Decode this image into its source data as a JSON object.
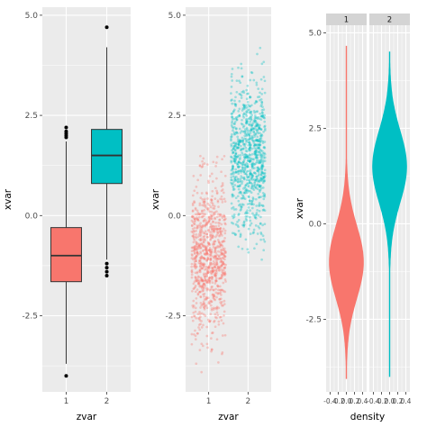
{
  "colors": {
    "panel_bg": "#ebebeb",
    "grid": "#ffffff",
    "strip_bg": "#d4d4d4",
    "group1": "#f8766d",
    "group2": "#00bfc4"
  },
  "chart_data": [
    {
      "type": "boxplot",
      "xlabel": "zvar",
      "ylabel": "xvar",
      "categories": [
        "1",
        "2"
      ],
      "ylim": [
        -4.4,
        5.2
      ],
      "yticks": [
        "5.0",
        "2.5",
        "0.0",
        "-2.5"
      ],
      "ytick_values": [
        5.0,
        2.5,
        0.0,
        -2.5
      ],
      "grid": true,
      "legend": "none",
      "boxes": [
        {
          "category": "1",
          "q1": -1.65,
          "median": -1.0,
          "q3": -0.3,
          "whisker_low": -3.7,
          "whisker_high": 1.85,
          "outliers": [
            2.0,
            2.1,
            2.2,
            1.95,
            2.05,
            -4.0
          ]
        },
        {
          "category": "2",
          "q1": 0.8,
          "median": 1.5,
          "q3": 2.15,
          "whisker_low": -1.1,
          "whisker_high": 4.2,
          "outliers": [
            -1.2,
            -1.3,
            -1.4,
            -1.5,
            4.7
          ]
        }
      ]
    },
    {
      "type": "scatter",
      "xlabel": "zvar",
      "ylabel": "xvar",
      "categories": [
        "1",
        "2"
      ],
      "ylim": [
        -4.4,
        5.2
      ],
      "yticks": [
        "5.0",
        "2.5",
        "0.0",
        "-2.5"
      ],
      "ytick_values": [
        5.0,
        2.5,
        0.0,
        -2.5
      ],
      "jitter": true,
      "alpha": 0.35,
      "grid": true,
      "legend": "none",
      "groups": [
        {
          "category": "1",
          "mean": -1.0,
          "sd": 0.95,
          "min": -4.1,
          "max": 1.5,
          "n": 900
        },
        {
          "category": "2",
          "mean": 1.5,
          "sd": 0.95,
          "min": -1.6,
          "max": 4.4,
          "n": 900
        }
      ]
    },
    {
      "type": "violin",
      "xlabel": "density",
      "ylabel": "xvar",
      "facets": [
        "1",
        "2"
      ],
      "xticks": [
        "-0.4",
        "-0.2",
        "0.0",
        "0.2",
        "0.4"
      ],
      "xtick_values": [
        -0.4,
        -0.2,
        0.0,
        0.2,
        0.4
      ],
      "ylim": [
        -4.4,
        5.2
      ],
      "yticks": [
        "5.0",
        "2.5",
        "0.0",
        "-2.5"
      ],
      "ytick_values": [
        5.0,
        2.5,
        0.0,
        -2.5
      ],
      "grid": true,
      "legend": "none",
      "groups": [
        {
          "facet": "1",
          "mean": -1.0,
          "sd": 0.95,
          "min": -4.05,
          "max": 4.65,
          "max_density": 0.42
        },
        {
          "facet": "2",
          "mean": 1.5,
          "sd": 0.95,
          "min": -4.0,
          "max": 4.5,
          "max_density": 0.42
        }
      ]
    }
  ]
}
